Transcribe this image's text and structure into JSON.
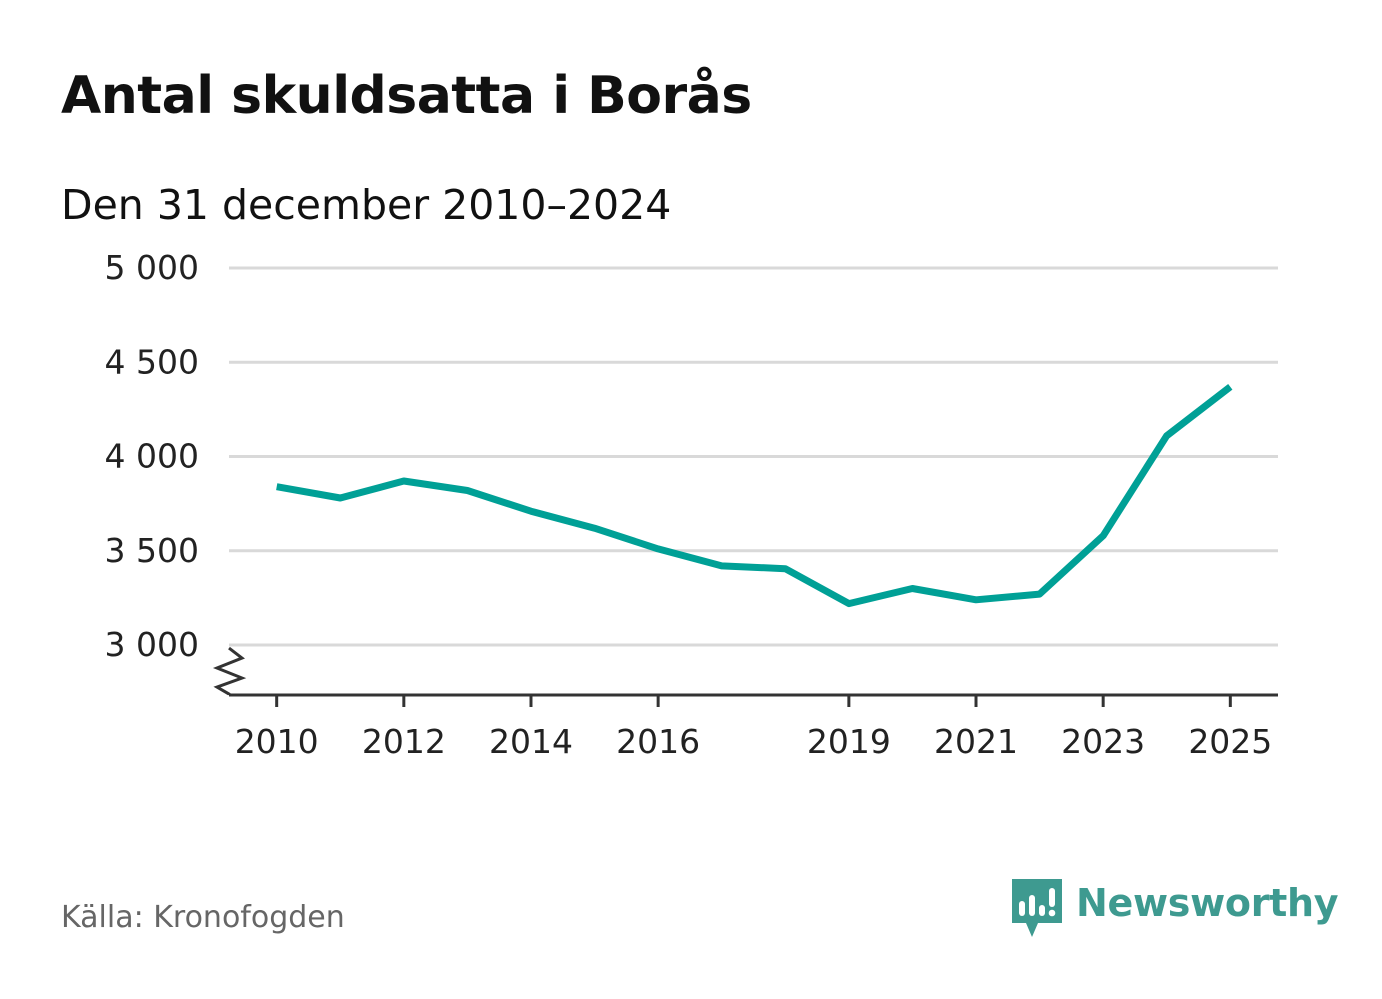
{
  "title": "Antal skuldsatta i Borås",
  "subtitle": "Den 31 december 2010–2024",
  "source": "Källa: Kronofogden",
  "brand": {
    "name": "Newsworthy",
    "icon": "newsworthy-logo-icon",
    "color": "#3e9a90"
  },
  "chart_data": {
    "type": "line",
    "title": "Antal skuldsatta i Borås",
    "subtitle": "Den 31 december 2010–2024",
    "xlabel": "",
    "ylabel": "",
    "x_ticks": [
      {
        "value": 2010,
        "label": "2010"
      },
      {
        "value": 2012,
        "label": "2012"
      },
      {
        "value": 2014,
        "label": "2014"
      },
      {
        "value": 2016,
        "label": "2016"
      },
      {
        "value": 2019,
        "label": "2019"
      },
      {
        "value": 2021,
        "label": "2021"
      },
      {
        "value": 2023,
        "label": "2023"
      },
      {
        "value": 2025,
        "label": "2025"
      }
    ],
    "y_ticks": [
      {
        "value": 3000,
        "label": "3 000"
      },
      {
        "value": 3500,
        "label": "3 500"
      },
      {
        "value": 4000,
        "label": "4 000"
      },
      {
        "value": 4500,
        "label": "4 500"
      },
      {
        "value": 5000,
        "label": "5 000"
      }
    ],
    "xlim": [
      2009.25,
      2025.75
    ],
    "ylim": [
      2735,
      5000
    ],
    "grid": true,
    "axis_break": true,
    "series": [
      {
        "name": "Antal skuldsatta",
        "color": "#00a096",
        "x": [
          2010,
          2011,
          2012,
          2013,
          2014,
          2015,
          2016,
          2017,
          2018,
          2019,
          2020,
          2021,
          2022,
          2023,
          2024,
          2025
        ],
        "values": [
          3840,
          3780,
          3870,
          3820,
          3710,
          3620,
          3510,
          3420,
          3405,
          3220,
          3300,
          3240,
          3270,
          3580,
          4110,
          4370
        ]
      }
    ]
  }
}
